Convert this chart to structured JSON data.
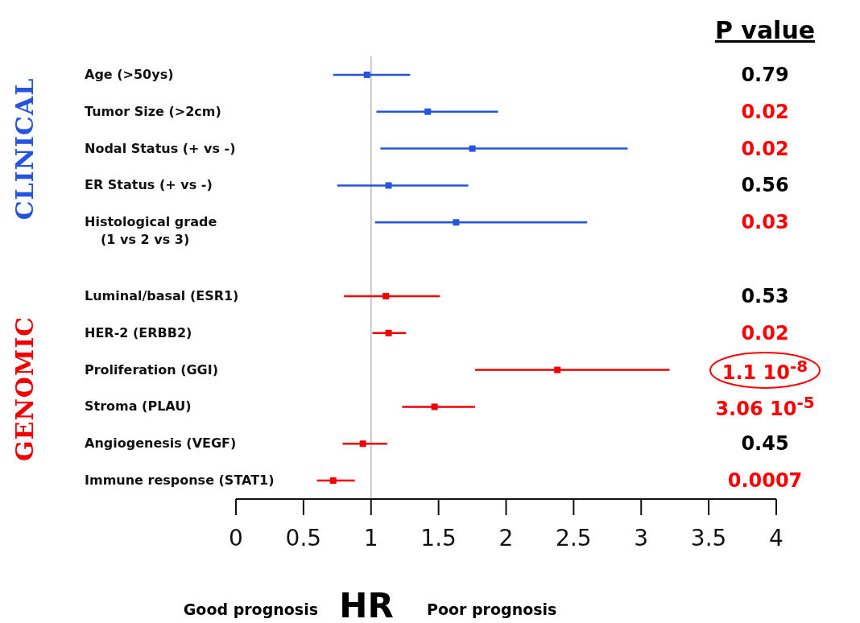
{
  "chart_data": {
    "type": "scatter",
    "orientation": "horizontal",
    "xlabel": "HR",
    "categories": [
      "Age (>50ys)",
      "Tumor Size (>2cm)",
      "Nodal Status (+ vs -)",
      "ER Status (+ vs -)",
      "Histological grade\n(1 vs 2 vs 3)",
      null,
      "Luminal/basal (ESR1)",
      "HER-2 (ERBB2)",
      "Proliferation (GGI)",
      "Stroma (PLAU)",
      "Angiogenesis (VEGF)",
      "Immune response (STAT1)"
    ],
    "series": [
      {
        "name": "CLINICAL",
        "color": "#2454e0",
        "values": [
          0.97,
          1.42,
          1.75,
          1.13,
          1.63,
          null,
          null,
          null,
          null,
          null,
          null,
          null
        ],
        "errors": [
          [
            0.72,
            1.29
          ],
          [
            1.04,
            1.94
          ],
          [
            1.07,
            2.9
          ],
          [
            0.75,
            1.72
          ],
          [
            1.03,
            2.6
          ],
          null,
          null,
          null,
          null,
          null,
          null,
          null
        ]
      },
      {
        "name": "GENOMIC",
        "color": "#f00000",
        "values": [
          null,
          null,
          null,
          null,
          null,
          null,
          1.11,
          1.13,
          2.38,
          1.47,
          0.94,
          0.72
        ],
        "errors": [
          null,
          null,
          null,
          null,
          null,
          null,
          [
            0.8,
            1.51
          ],
          [
            1.01,
            1.26
          ],
          [
            1.77,
            3.21
          ],
          [
            1.23,
            1.77
          ],
          [
            0.79,
            1.12
          ],
          [
            0.6,
            0.88
          ]
        ]
      }
    ],
    "xlim": [
      0,
      4
    ],
    "xticks": [
      0,
      0.5,
      1,
      1.5,
      2,
      2.5,
      3,
      3.5,
      4
    ],
    "ref_lines": [
      {
        "axis": "x",
        "value": 1,
        "color": "#c8c8c8"
      }
    ],
    "marker": "square",
    "grid": false,
    "legend": false,
    "annotations": [
      "P value",
      "0.79",
      "0.02",
      "0.02",
      "0.56",
      "0.03",
      "0.53",
      "0.02",
      "1.1 10$^{-8}$",
      "3.06 10$^{-5}$",
      "0.45",
      "0.0007",
      "Good prognosis",
      "Poor prognosis"
    ]
  }
}
